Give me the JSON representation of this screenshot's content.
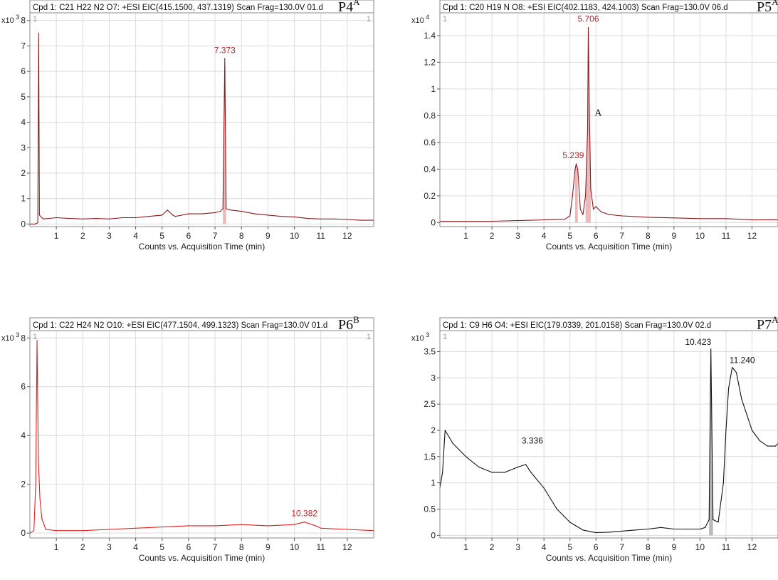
{
  "chart_data": [
    {
      "id": "p4",
      "type": "line",
      "title": "Cpd 1: C21 H22 N2 O7: +ESI EIC(415.1500, 437.1319) Scan Frag=130.0V 01.d",
      "panel_label": "P4",
      "panel_sup": "A",
      "multiplier": "x10",
      "multiplier_exp": "3",
      "corner_left": "1",
      "corner_right": "1",
      "xlabel": "Counts vs. Acquisition Time (min)",
      "ylabel": "",
      "xlim": [
        0,
        13
      ],
      "ylim": [
        -0.1,
        8.3
      ],
      "xticks": [
        1,
        2,
        3,
        4,
        5,
        6,
        7,
        8,
        9,
        10,
        11,
        12
      ],
      "yticks": [
        0,
        1,
        2,
        3,
        4,
        5,
        6,
        7,
        8
      ],
      "grid": true,
      "line_color": "#8b1a1a",
      "fill_color": "#e8a6a6",
      "peak_labels": [
        {
          "text": "7.373",
          "x": 7.37,
          "y": 6.5
        }
      ],
      "annotation": "",
      "points": [
        [
          0.0,
          0.0
        ],
        [
          0.2,
          0.0
        ],
        [
          0.3,
          0.05
        ],
        [
          0.33,
          7.5
        ],
        [
          0.36,
          0.35
        ],
        [
          0.5,
          0.2
        ],
        [
          1,
          0.25
        ],
        [
          1.5,
          0.22
        ],
        [
          2,
          0.2
        ],
        [
          2.5,
          0.22
        ],
        [
          3,
          0.2
        ],
        [
          3.5,
          0.25
        ],
        [
          4,
          0.25
        ],
        [
          4.5,
          0.3
        ],
        [
          5,
          0.35
        ],
        [
          5.2,
          0.55
        ],
        [
          5.4,
          0.35
        ],
        [
          5.5,
          0.3
        ],
        [
          6,
          0.4
        ],
        [
          6.5,
          0.4
        ],
        [
          7,
          0.45
        ],
        [
          7.2,
          0.5
        ],
        [
          7.3,
          0.6
        ],
        [
          7.37,
          6.5
        ],
        [
          7.42,
          0.6
        ],
        [
          7.6,
          0.55
        ],
        [
          8,
          0.5
        ],
        [
          8.5,
          0.4
        ],
        [
          9,
          0.35
        ],
        [
          9.5,
          0.3
        ],
        [
          10,
          0.28
        ],
        [
          10.5,
          0.22
        ],
        [
          11,
          0.2
        ],
        [
          11.5,
          0.2
        ],
        [
          12,
          0.18
        ],
        [
          12.5,
          0.15
        ],
        [
          13,
          0.15
        ]
      ]
    },
    {
      "id": "p5",
      "type": "line",
      "title": "Cpd 1: C20 H19 N O8: +ESI EIC(402.1183, 424.1003) Scan Frag=130.0V 06.d",
      "panel_label": "P5",
      "panel_sup": "A",
      "multiplier": "x10",
      "multiplier_exp": "4",
      "corner_left": "1",
      "corner_right": "",
      "xlabel": "Counts vs. Acquisition Time (min)",
      "ylabel": "",
      "xlim": [
        0,
        13
      ],
      "ylim": [
        -0.03,
        1.57
      ],
      "xticks": [
        1,
        2,
        3,
        4,
        5,
        6,
        7,
        8,
        9,
        10,
        11,
        12
      ],
      "yticks": [
        0,
        0.2,
        0.4,
        0.6,
        0.8,
        1,
        1.2,
        1.4
      ],
      "grid": true,
      "line_color": "#8b1a1a",
      "fill_color": "#e8a6a6",
      "peak_labels": [
        {
          "text": "5.706",
          "x": 5.706,
          "y": 1.46
        },
        {
          "text": "5.239",
          "x": 5.239,
          "y": 0.44
        }
      ],
      "annotation": "A",
      "points": [
        [
          0,
          0.01
        ],
        [
          1,
          0.01
        ],
        [
          2,
          0.01
        ],
        [
          3,
          0.015
        ],
        [
          4,
          0.02
        ],
        [
          4.8,
          0.025
        ],
        [
          5.0,
          0.05
        ],
        [
          5.1,
          0.2
        ],
        [
          5.2,
          0.4
        ],
        [
          5.24,
          0.44
        ],
        [
          5.3,
          0.4
        ],
        [
          5.4,
          0.1
        ],
        [
          5.5,
          0.06
        ],
        [
          5.6,
          0.2
        ],
        [
          5.68,
          0.7
        ],
        [
          5.706,
          1.46
        ],
        [
          5.75,
          0.8
        ],
        [
          5.8,
          0.25
        ],
        [
          5.9,
          0.1
        ],
        [
          6.0,
          0.12
        ],
        [
          6.2,
          0.08
        ],
        [
          6.5,
          0.06
        ],
        [
          7,
          0.05
        ],
        [
          8,
          0.04
        ],
        [
          9,
          0.035
        ],
        [
          10,
          0.03
        ],
        [
          11,
          0.03
        ],
        [
          12,
          0.02
        ],
        [
          13,
          0.02
        ]
      ]
    },
    {
      "id": "p6",
      "type": "line",
      "title": "Cpd 1: C22 H24 N2 O10: +ESI EIC(477.1504, 499.1323) Scan Frag=130.0V 01.d",
      "panel_label": "P6",
      "panel_sup": "B",
      "multiplier": "x10",
      "multiplier_exp": "3",
      "corner_left": "1",
      "corner_right": "1",
      "xlabel": "Counts vs. Acquisition Time (min)",
      "ylabel": "",
      "xlim": [
        0,
        13
      ],
      "ylim": [
        -0.2,
        8.3
      ],
      "xticks": [
        1,
        2,
        3,
        4,
        5,
        6,
        7,
        8,
        9,
        10,
        11,
        12
      ],
      "yticks": [
        0,
        2,
        4,
        6,
        8
      ],
      "grid": true,
      "line_color": "#e02020",
      "fill_color": "#f5b3b3",
      "peak_labels": [
        {
          "text": "10.382",
          "x": 10.382,
          "y": 0.45
        }
      ],
      "annotation": "",
      "points": [
        [
          0.0,
          0.0
        ],
        [
          0.15,
          0.1
        ],
        [
          0.22,
          2.0
        ],
        [
          0.27,
          7.9
        ],
        [
          0.32,
          3.0
        ],
        [
          0.38,
          1.4
        ],
        [
          0.45,
          0.6
        ],
        [
          0.6,
          0.15
        ],
        [
          1,
          0.1
        ],
        [
          1.5,
          0.1
        ],
        [
          2,
          0.1
        ],
        [
          3,
          0.15
        ],
        [
          4,
          0.2
        ],
        [
          5,
          0.25
        ],
        [
          6,
          0.3
        ],
        [
          7,
          0.3
        ],
        [
          8,
          0.35
        ],
        [
          9,
          0.3
        ],
        [
          10,
          0.35
        ],
        [
          10.38,
          0.45
        ],
        [
          10.8,
          0.3
        ],
        [
          11,
          0.2
        ],
        [
          12,
          0.15
        ],
        [
          13,
          0.1
        ]
      ]
    },
    {
      "id": "p7",
      "type": "line",
      "title": "Cpd 1: C9 H6 O4: +ESI EIC(179.0339, 201.0158) Scan Frag=130.0V 02.d",
      "panel_label": "P7",
      "panel_sup": "A",
      "multiplier": "x10",
      "multiplier_exp": "3",
      "corner_left": "1",
      "corner_right": "",
      "xlabel": "Counts vs. Acquisition Time (min)",
      "ylabel": "",
      "xlim": [
        0,
        13
      ],
      "ylim": [
        -0.05,
        3.9
      ],
      "xticks": [
        1,
        2,
        3,
        4,
        5,
        6,
        7,
        8,
        9,
        10,
        11,
        12
      ],
      "yticks": [
        0,
        0.5,
        1,
        1.5,
        2,
        2.5,
        3,
        3.5
      ],
      "grid": true,
      "line_color": "#111111",
      "fill_color": "#a8a8a8",
      "peak_labels": [
        {
          "text": "3.336",
          "x": 3.336,
          "y": 1.45
        },
        {
          "text": "10.423",
          "x": 10.423,
          "y": 3.55
        },
        {
          "text": "11.240",
          "x": 11.24,
          "y": 3.2
        }
      ],
      "annotation": "",
      "points": [
        [
          0,
          0.9
        ],
        [
          0.1,
          1.2
        ],
        [
          0.2,
          2.0
        ],
        [
          0.5,
          1.75
        ],
        [
          1,
          1.5
        ],
        [
          1.5,
          1.3
        ],
        [
          2,
          1.2
        ],
        [
          2.5,
          1.2
        ],
        [
          3,
          1.3
        ],
        [
          3.3,
          1.35
        ],
        [
          3.5,
          1.2
        ],
        [
          4,
          0.9
        ],
        [
          4.5,
          0.5
        ],
        [
          5,
          0.25
        ],
        [
          5.5,
          0.1
        ],
        [
          6,
          0.05
        ],
        [
          6.5,
          0.06
        ],
        [
          7,
          0.08
        ],
        [
          7.5,
          0.1
        ],
        [
          8,
          0.12
        ],
        [
          8.5,
          0.15
        ],
        [
          9,
          0.12
        ],
        [
          9.5,
          0.12
        ],
        [
          10,
          0.12
        ],
        [
          10.2,
          0.15
        ],
        [
          10.35,
          0.3
        ],
        [
          10.42,
          3.55
        ],
        [
          10.5,
          0.3
        ],
        [
          10.7,
          0.25
        ],
        [
          10.9,
          1.0
        ],
        [
          11,
          2.0
        ],
        [
          11.1,
          2.8
        ],
        [
          11.24,
          3.2
        ],
        [
          11.4,
          3.1
        ],
        [
          11.6,
          2.6
        ],
        [
          11.8,
          2.3
        ],
        [
          12,
          2.0
        ],
        [
          12.3,
          1.8
        ],
        [
          12.6,
          1.7
        ],
        [
          12.9,
          1.7
        ],
        [
          13,
          1.75
        ]
      ]
    }
  ]
}
